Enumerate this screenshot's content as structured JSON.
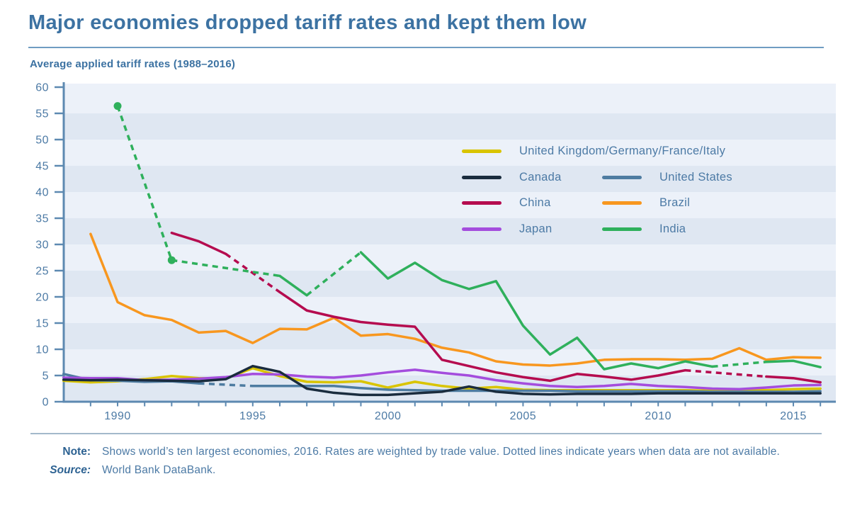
{
  "header": {
    "title": "Major economies dropped tariff rates and kept them low"
  },
  "theme": {
    "title_color": "#3c72a2",
    "axis_color": "#5d89b1",
    "label_color": "#4c7aa5",
    "label_strong_color": "#2d6292",
    "rule_color": "#709dc2",
    "divider_color": "#a3b9cb",
    "stripe_light": "#ecf1f9",
    "stripe_dark": "#dfe7f2",
    "background": "#ffffff"
  },
  "chart_data": {
    "type": "line",
    "title": "Average applied tariff rates (1988–2016)",
    "xlabel": "",
    "ylabel": "",
    "ylim": [
      0,
      60
    ],
    "x_range": [
      1988,
      2016
    ],
    "grid": "striped horizontal bands every 5 units",
    "legend_position": "inside upper right",
    "dash_meaning": "dashed segments span years with missing data",
    "y_ticks": [
      0,
      5,
      10,
      15,
      20,
      25,
      30,
      35,
      40,
      45,
      50,
      55,
      60
    ],
    "x_tick_labels": [
      1990,
      1995,
      2000,
      2005,
      2010,
      2015
    ],
    "years": [
      1988,
      1989,
      1990,
      1991,
      1992,
      1993,
      1994,
      1995,
      1996,
      1997,
      1998,
      1999,
      2000,
      2001,
      2002,
      2003,
      2004,
      2005,
      2006,
      2007,
      2008,
      2009,
      2010,
      2011,
      2012,
      2013,
      2014,
      2015,
      2016
    ],
    "draw_order": [
      0,
      2,
      5,
      4,
      3,
      1,
      6
    ],
    "series": [
      {
        "name": "United Kingdom/Germany/France/Italy",
        "color": "#d9c400",
        "values": [
          4.0,
          3.7,
          3.9,
          4.3,
          4.9,
          4.5,
          4.4,
          6.4,
          4.9,
          3.8,
          3.7,
          3.9,
          2.7,
          3.8,
          3.0,
          2.5,
          2.8,
          2.3,
          2.2,
          2.2,
          2.2,
          2.2,
          2.2,
          2.2,
          2.1,
          2.2,
          2.2,
          2.4,
          2.5
        ]
      },
      {
        "name": "Canada",
        "color": "#1a2c3e",
        "values": [
          4.2,
          4.1,
          4.2,
          4.1,
          4.0,
          3.9,
          4.3,
          6.8,
          5.7,
          2.5,
          1.7,
          1.3,
          1.3,
          1.6,
          1.9,
          2.9,
          1.9,
          1.5,
          1.4,
          1.5,
          1.5,
          1.5,
          1.6,
          1.6,
          1.6,
          1.6,
          1.6,
          1.6,
          1.6
        ]
      },
      {
        "name": "United States",
        "color": "#4e7ca1",
        "values": [
          5.3,
          4.1,
          4.0,
          3.8,
          3.9,
          3.5,
          null,
          3.0,
          3.0,
          3.0,
          3.0,
          2.6,
          2.3,
          2.2,
          2.1,
          2.1,
          2.1,
          2.1,
          2.1,
          2.0,
          2.0,
          2.0,
          2.0,
          2.0,
          1.9,
          1.9,
          1.9,
          1.9,
          2.0
        ]
      },
      {
        "name": "China",
        "color": "#b50c4f",
        "values": [
          null,
          null,
          null,
          null,
          32.2,
          30.6,
          28.2,
          null,
          20.9,
          17.4,
          16.2,
          15.2,
          14.7,
          14.3,
          8.0,
          6.8,
          5.6,
          4.7,
          4.0,
          5.3,
          4.8,
          4.2,
          5.0,
          6.0,
          null,
          null,
          4.8,
          4.5,
          3.7
        ]
      },
      {
        "name": "Brazil",
        "color": "#f8971f",
        "values": [
          null,
          32.0,
          19.0,
          16.5,
          15.6,
          13.2,
          13.5,
          11.2,
          13.9,
          13.8,
          16.0,
          12.6,
          12.9,
          12.0,
          10.3,
          9.4,
          7.7,
          7.1,
          6.9,
          7.3,
          8.0,
          8.1,
          8.1,
          8.0,
          8.2,
          10.2,
          8.0,
          8.5,
          8.4
        ]
      },
      {
        "name": "Japan",
        "color": "#a44ddd",
        "values": [
          4.6,
          4.5,
          4.5,
          4.1,
          4.2,
          4.4,
          4.7,
          5.3,
          5.2,
          4.8,
          4.6,
          5.0,
          5.6,
          6.1,
          5.5,
          5.0,
          4.1,
          3.5,
          3.0,
          2.8,
          3.0,
          3.4,
          3.0,
          2.8,
          2.5,
          2.4,
          2.7,
          3.1,
          3.2
        ]
      },
      {
        "name": "India",
        "color": "#2fb05c",
        "markers": [
          1990,
          1992
        ],
        "values": [
          null,
          null,
          56.4,
          null,
          27.0,
          null,
          null,
          null,
          24.0,
          20.3,
          null,
          28.5,
          23.5,
          26.5,
          23.2,
          21.5,
          23.0,
          14.5,
          9.0,
          12.2,
          6.2,
          7.3,
          6.4,
          7.7,
          6.7,
          null,
          7.6,
          7.8,
          6.6
        ]
      }
    ]
  },
  "footer": {
    "note_label": "Note:",
    "note_text": "Shows world’s ten largest economies, 2016. Rates are weighted by trade value. Dotted lines indicate years when data are not available.",
    "source_label": "Source:",
    "source_text": "World Bank DataBank."
  }
}
